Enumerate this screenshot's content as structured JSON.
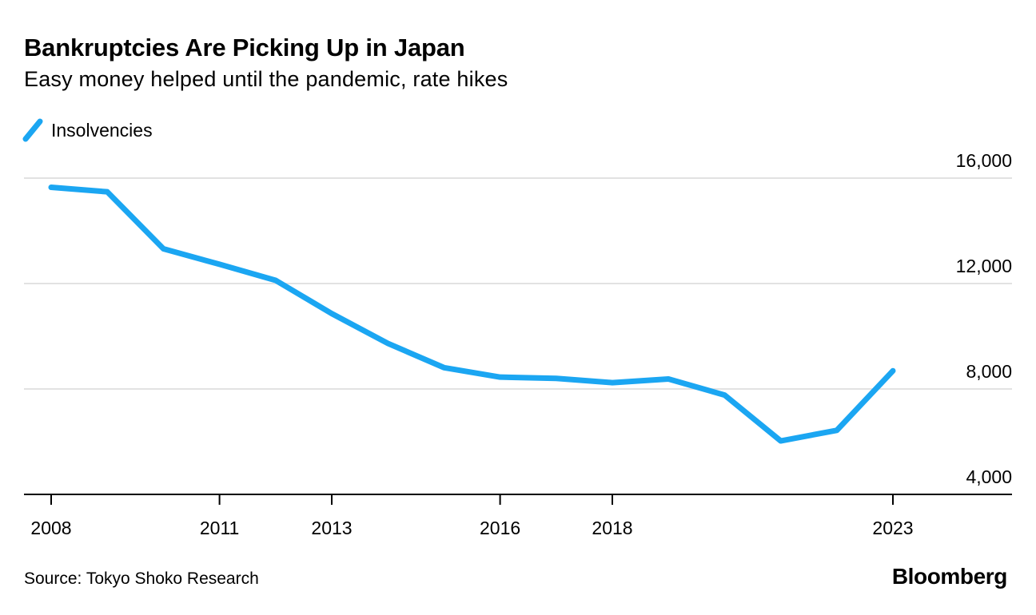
{
  "header": {
    "title": "Bankruptcies Are Picking Up in Japan",
    "subtitle": "Easy money helped until the pandemic, rate hikes"
  },
  "legend": {
    "series_label": "Insolvencies"
  },
  "chart_data": {
    "type": "line",
    "title": "Bankruptcies Are Picking Up in Japan",
    "subtitle": "Easy money helped until the pandemic, rate hikes",
    "xlabel": "",
    "ylabel": "",
    "x": [
      2008,
      2009,
      2010,
      2011,
      2012,
      2013,
      2014,
      2015,
      2016,
      2017,
      2018,
      2019,
      2020,
      2021,
      2022,
      2023
    ],
    "series": [
      {
        "name": "Insolvencies",
        "values": [
          15650,
          15480,
          13320,
          12730,
          12120,
          10860,
          9730,
          8810,
          8450,
          8400,
          8240,
          8380,
          7770,
          6030,
          6430,
          8690
        ]
      }
    ],
    "ylim": [
      4000,
      16000
    ],
    "yticks": [
      4000,
      8000,
      12000,
      16000
    ],
    "ytick_labels": [
      "4,000",
      "8,000",
      "12,000",
      "16,000"
    ],
    "xticks": [
      2008,
      2011,
      2013,
      2016,
      2018,
      2023
    ],
    "xtick_labels": [
      "2008",
      "2011",
      "2013",
      "2016",
      "2018",
      "2023"
    ],
    "grid": "horizontal",
    "legend_position": "top-left"
  },
  "footer": {
    "source": "Source: Tokyo Shoko Research",
    "brand": "Bloomberg"
  },
  "colors": {
    "line": "#1ba6f2",
    "grid": "#e2e2e2",
    "axis": "#000000",
    "text": "#000000",
    "background": "#ffffff"
  }
}
